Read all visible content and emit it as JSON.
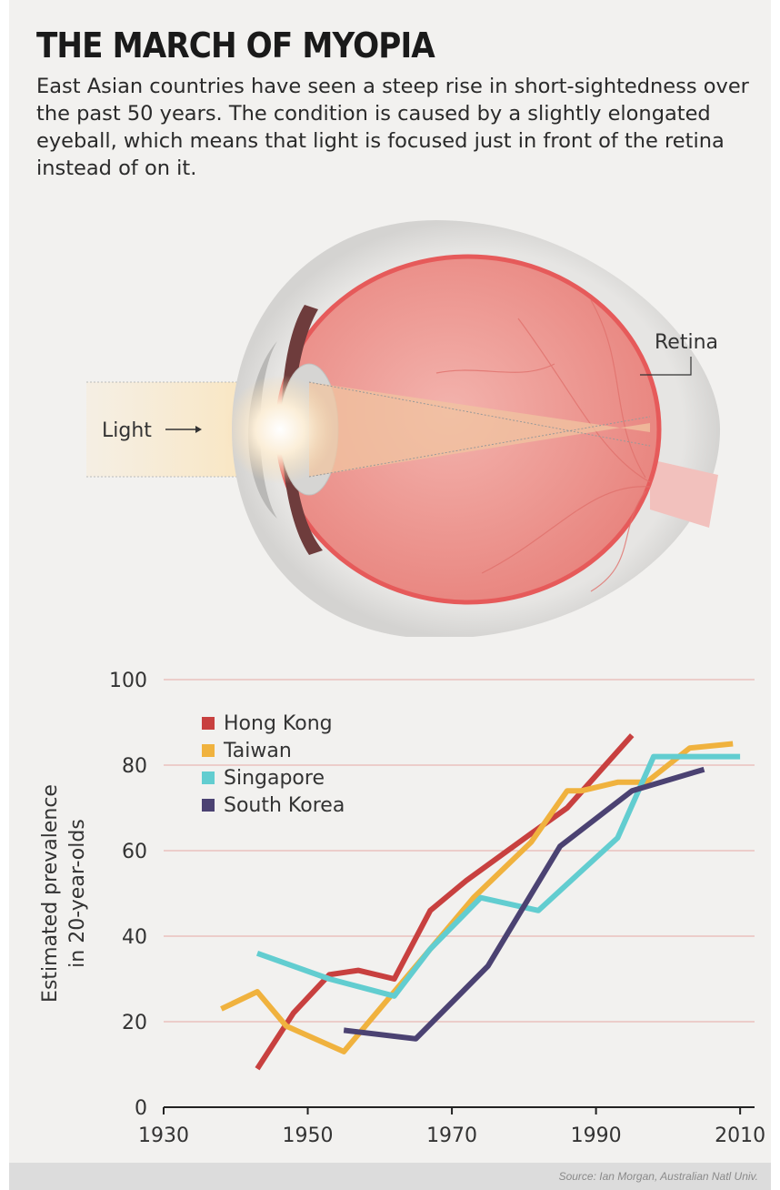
{
  "header": {
    "title": "THE MARCH OF MYOPIA",
    "subtitle": "East Asian countries have seen a steep rise in short-sightedness over the past 50 years. The condition is caused by a slightly elongated eyeball, which means that light is focused just in front of the retina instead of on it."
  },
  "illustration": {
    "light_label": "Light",
    "retina_label": "Retina"
  },
  "chart_data": {
    "type": "line",
    "title": "",
    "xlabel": "",
    "ylabel": "Estimated prevalence in 20-year-olds",
    "ylabel_lines": [
      "Estimated prevalence",
      "in 20-year-olds"
    ],
    "xlim": [
      1930,
      2012
    ],
    "ylim": [
      0,
      100
    ],
    "xticks": [
      1930,
      1950,
      1970,
      1990,
      2010
    ],
    "yticks": [
      0,
      20,
      40,
      60,
      80,
      100
    ],
    "grid": "horizontal",
    "legend_position": "top-left",
    "series": [
      {
        "name": "Hong Kong",
        "color": "#c8403f",
        "points": [
          [
            1943,
            9
          ],
          [
            1948,
            22
          ],
          [
            1953,
            31
          ],
          [
            1957,
            32
          ],
          [
            1962,
            30
          ],
          [
            1967,
            46
          ],
          [
            1972,
            53
          ],
          [
            1981,
            64
          ],
          [
            1986,
            70
          ],
          [
            1995,
            87
          ]
        ]
      },
      {
        "name": "Taiwan",
        "color": "#f0b23e",
        "points": [
          [
            1938,
            23
          ],
          [
            1943,
            27
          ],
          [
            1947,
            19
          ],
          [
            1955,
            13
          ],
          [
            1963,
            29
          ],
          [
            1973,
            49
          ],
          [
            1981,
            62
          ],
          [
            1986,
            74
          ],
          [
            1988,
            74
          ],
          [
            1993,
            76
          ],
          [
            1997,
            76
          ],
          [
            2003,
            84
          ],
          [
            2009,
            85
          ]
        ]
      },
      {
        "name": "Singapore",
        "color": "#62cdd0",
        "points": [
          [
            1943,
            36
          ],
          [
            1953,
            30
          ],
          [
            1962,
            26
          ],
          [
            1967,
            37
          ],
          [
            1974,
            49
          ],
          [
            1982,
            46
          ],
          [
            1993,
            63
          ],
          [
            1998,
            82
          ],
          [
            2010,
            82
          ]
        ]
      },
      {
        "name": "South Korea",
        "color": "#4b4272",
        "points": [
          [
            1955,
            18
          ],
          [
            1965,
            16
          ],
          [
            1975,
            33
          ],
          [
            1985,
            61
          ],
          [
            1995,
            74
          ],
          [
            2005,
            79
          ]
        ]
      }
    ]
  },
  "footer": {
    "source": "Source: Ian Morgan, Australian Natl Univ."
  }
}
